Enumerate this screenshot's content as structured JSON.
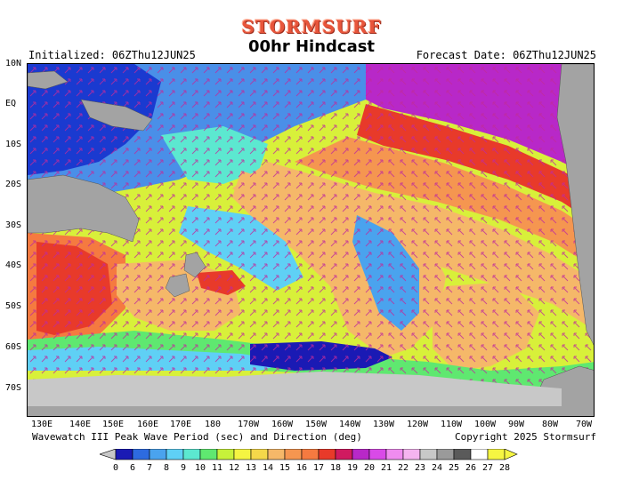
{
  "brand": "STORMSURF",
  "title": "00hr Hindcast",
  "initialized": "Initialized: 06ZThu12JUN25",
  "forecast_date": "Forecast Date: 06ZThu12JUN25",
  "footer_left": "Wavewatch III Peak Wave Period (sec) and Direction (deg)",
  "footer_right": "Copyright 2025 Stormsurf",
  "lat_labels": [
    "10N",
    "EQ",
    "10S",
    "20S",
    "30S",
    "40S",
    "50S",
    "60S",
    "70S"
  ],
  "lon_labels": [
    "130E",
    "140E",
    "150E",
    "160E",
    "170E",
    "180",
    "170W",
    "160W",
    "150W",
    "140W",
    "130W",
    "120W",
    "110W",
    "100W",
    "90W",
    "80W",
    "70W"
  ],
  "colorbar": {
    "labels": [
      "0",
      "6",
      "7",
      "8",
      "9",
      "10",
      "11",
      "12",
      "13",
      "14",
      "15",
      "16",
      "17",
      "18",
      "19",
      "20",
      "21",
      "22",
      "23",
      "24",
      "25",
      "26",
      "27",
      "28"
    ],
    "colors": [
      "#1a1ab4",
      "#2d6be0",
      "#4aa3ee",
      "#5fd0f5",
      "#5ce8d0",
      "#5fe870",
      "#c7f23a",
      "#f5f542",
      "#f5d84a",
      "#f5b869",
      "#f59650",
      "#f57a40",
      "#e83a2a",
      "#d01a60",
      "#b828c8",
      "#d94ae8",
      "#f08cf0",
      "#f5b4f0",
      "#c8c8c8",
      "#9a9a9a",
      "#5a5a5a",
      "#ffffff",
      "#f5f542"
    ]
  },
  "colors": {
    "land": "#a3a3a3",
    "ice": "#c8c8c8",
    "brand": "#e8553b",
    "arrow": "#c02a9c"
  }
}
